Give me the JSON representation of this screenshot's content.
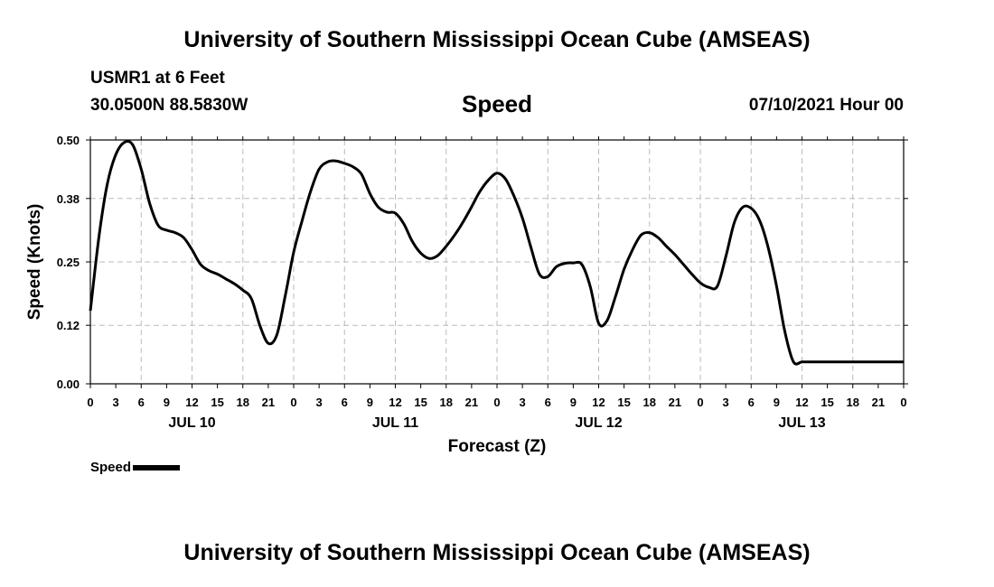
{
  "header": {
    "title": "University of Southern Mississippi Ocean Cube (AMSEAS)",
    "station": "USMR1 at 6 Feet",
    "coordinates": "30.0500N  88.5830W",
    "variable": "Speed",
    "datetime": "07/10/2021 Hour 00"
  },
  "footer": {
    "title": "University of Southern Mississippi Ocean Cube (AMSEAS)"
  },
  "legend": {
    "label": "Speed",
    "color": "#000000"
  },
  "chart_data": {
    "type": "line",
    "title": "Speed",
    "xlabel": "Forecast (Z)",
    "ylabel": "Speed (Knots)",
    "xlim": [
      0,
      96
    ],
    "ylim": [
      0,
      0.5
    ],
    "yticks": [
      "0.00",
      "0.12",
      "0.25",
      "0.38",
      "0.50"
    ],
    "xtick_labels": [
      "0",
      "3",
      "6",
      "9",
      "12",
      "15",
      "18",
      "21",
      "0",
      "3",
      "6",
      "9",
      "12",
      "15",
      "18",
      "21",
      "0",
      "3",
      "6",
      "9",
      "12",
      "15",
      "18",
      "21",
      "0",
      "3",
      "6",
      "9",
      "12",
      "15",
      "18",
      "21",
      "0"
    ],
    "day_labels": [
      {
        "label": "JUL 10",
        "hour": 12
      },
      {
        "label": "JUL 11",
        "hour": 36
      },
      {
        "label": "JUL 12",
        "hour": 60
      },
      {
        "label": "JUL 13",
        "hour": 84
      }
    ],
    "grid": true,
    "series": [
      {
        "name": "Speed",
        "color": "#000000",
        "x": [
          0,
          1,
          2,
          3,
          4,
          5,
          6,
          7,
          8,
          9,
          10,
          11,
          12,
          13,
          14,
          15,
          16,
          17,
          18,
          19,
          20,
          21,
          22,
          23,
          24,
          25,
          26,
          27,
          28,
          29,
          30,
          31,
          32,
          33,
          34,
          35,
          36,
          37,
          38,
          39,
          40,
          41,
          42,
          43,
          44,
          45,
          46,
          47,
          48,
          49,
          50,
          51,
          52,
          53,
          54,
          55,
          56,
          57,
          58,
          59,
          60,
          61,
          62,
          63,
          64,
          65,
          66,
          67,
          68,
          69,
          70,
          71,
          72,
          73,
          74,
          75,
          76,
          77,
          78,
          79,
          80,
          81,
          82,
          83,
          84,
          85,
          86,
          87,
          88,
          89,
          90,
          91,
          92,
          93,
          94,
          95,
          96
        ],
        "values": [
          0.15,
          0.3,
          0.41,
          0.47,
          0.495,
          0.49,
          0.44,
          0.37,
          0.325,
          0.315,
          0.31,
          0.3,
          0.275,
          0.245,
          0.232,
          0.225,
          0.215,
          0.205,
          0.192,
          0.175,
          0.12,
          0.083,
          0.1,
          0.18,
          0.27,
          0.335,
          0.395,
          0.44,
          0.455,
          0.457,
          0.452,
          0.445,
          0.43,
          0.39,
          0.362,
          0.352,
          0.35,
          0.328,
          0.292,
          0.268,
          0.257,
          0.263,
          0.282,
          0.305,
          0.332,
          0.363,
          0.395,
          0.418,
          0.432,
          0.42,
          0.385,
          0.34,
          0.28,
          0.225,
          0.22,
          0.24,
          0.247,
          0.248,
          0.245,
          0.2,
          0.124,
          0.13,
          0.18,
          0.235,
          0.275,
          0.305,
          0.31,
          0.3,
          0.282,
          0.265,
          0.245,
          0.225,
          0.207,
          0.198,
          0.2,
          0.26,
          0.33,
          0.362,
          0.36,
          0.335,
          0.28,
          0.2,
          0.105,
          0.045,
          0.045,
          0.045,
          0.045,
          0.045,
          0.045,
          0.045,
          0.045,
          0.045,
          0.045,
          0.045,
          0.045,
          0.045,
          0.045
        ]
      }
    ]
  }
}
